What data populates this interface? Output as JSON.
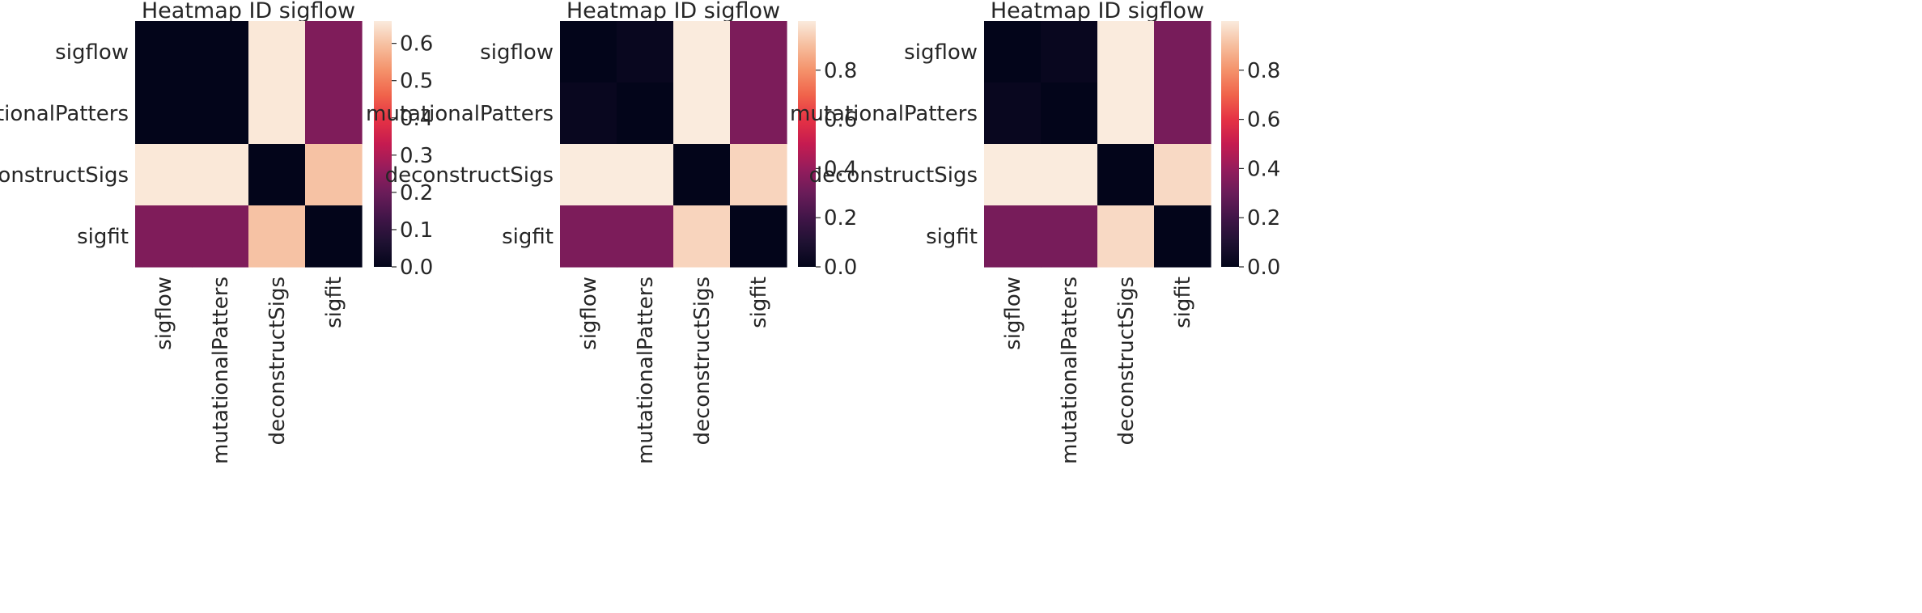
{
  "chart_data": [
    {
      "type": "heatmap",
      "title": "Heatmap ID sigflow",
      "x_categories": [
        "sigflow",
        "mutationalPatters",
        "deconstructSigs",
        "sigfit"
      ],
      "y_categories": [
        "sigflow",
        "mutationalPatters",
        "deconstructSigs",
        "sigfit"
      ],
      "values": [
        [
          0.0,
          0.0,
          0.655,
          0.23
        ],
        [
          0.0,
          0.0,
          0.655,
          0.23
        ],
        [
          0.655,
          0.655,
          0.0,
          0.6
        ],
        [
          0.23,
          0.23,
          0.6,
          0.0
        ]
      ],
      "colorbar": {
        "min": 0.0,
        "max": 0.66,
        "ticks": [
          "0.0",
          "0.1",
          "0.2",
          "0.3",
          "0.4",
          "0.5",
          "0.6"
        ]
      },
      "colormap": "rocket"
    },
    {
      "type": "heatmap",
      "title": "Heatmap ID sigflow",
      "x_categories": [
        "sigflow",
        "mutationalPatters",
        "deconstructSigs",
        "sigfit"
      ],
      "y_categories": [
        "sigflow",
        "mutationalPatters",
        "deconstructSigs",
        "sigfit"
      ],
      "values": [
        [
          0.0,
          0.02,
          1.0,
          0.34
        ],
        [
          0.02,
          0.0,
          1.0,
          0.34
        ],
        [
          1.0,
          1.0,
          0.0,
          0.95
        ],
        [
          0.34,
          0.34,
          0.95,
          0.0
        ]
      ],
      "colorbar": {
        "min": 0.0,
        "max": 1.0,
        "ticks": [
          "0.0",
          "0.2",
          "0.4",
          "0.6",
          "0.8"
        ]
      },
      "colormap": "rocket"
    },
    {
      "type": "heatmap",
      "title": "Heatmap ID sigflow",
      "x_categories": [
        "sigflow",
        "mutationalPatters",
        "deconstructSigs",
        "sigfit"
      ],
      "y_categories": [
        "sigflow",
        "mutationalPatters",
        "deconstructSigs",
        "sigfit"
      ],
      "values": [
        [
          0.0,
          0.02,
          1.0,
          0.33
        ],
        [
          0.02,
          0.0,
          1.0,
          0.33
        ],
        [
          1.0,
          1.0,
          0.0,
          0.96
        ],
        [
          0.33,
          0.33,
          0.96,
          0.0
        ]
      ],
      "colorbar": {
        "min": 0.0,
        "max": 1.0,
        "ticks": [
          "0.0",
          "0.2",
          "0.4",
          "0.6",
          "0.8"
        ]
      },
      "colormap": "rocket"
    }
  ]
}
